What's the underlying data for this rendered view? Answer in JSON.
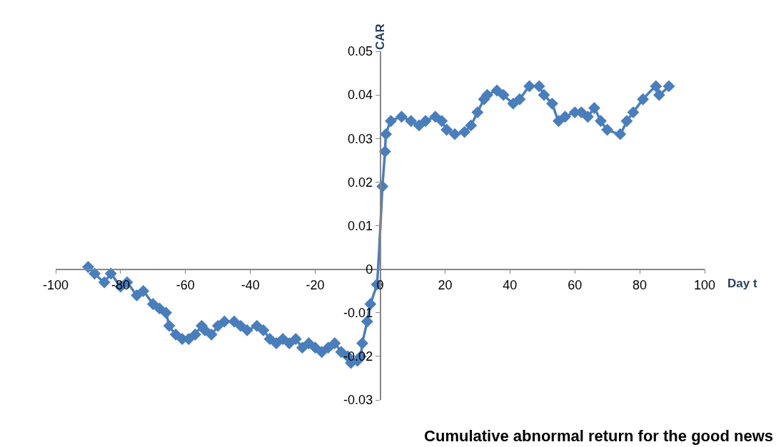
{
  "chart_data": {
    "type": "line",
    "title": "Cumulative abnormal return for the good news",
    "xlabel": "Day t",
    "ylabel": "CAR",
    "x": [
      -90,
      -88,
      -85,
      -83,
      -80,
      -78,
      -75,
      -73,
      -70,
      -68,
      -66,
      -65,
      -63,
      -61,
      -59,
      -57,
      -55,
      -54,
      -52,
      -50,
      -48,
      -45,
      -43,
      -41,
      -38,
      -36,
      -34,
      -32,
      -30,
      -28,
      -26,
      -24,
      -22,
      -20,
      -18,
      -16,
      -14,
      -12,
      -10,
      -9,
      -7,
      -6,
      -5.5,
      -4,
      -3,
      -1,
      0.7,
      1.5,
      1.8,
      3.3,
      6.6,
      9.5,
      12,
      14,
      17,
      19,
      20.5,
      23,
      26,
      28,
      30,
      32,
      33,
      36,
      38,
      41,
      43,
      46,
      49,
      50.5,
      53,
      55,
      57,
      60,
      62,
      64,
      66,
      68,
      70,
      74,
      76,
      78,
      81,
      85,
      86,
      89
    ],
    "series": [
      {
        "color": "#4a7ebb",
        "values": [
          0.0005,
          -0.001,
          -0.003,
          -0.001,
          -0.004,
          -0.003,
          -0.006,
          -0.005,
          -0.008,
          -0.009,
          -0.01,
          -0.013,
          -0.015,
          -0.016,
          -0.016,
          -0.015,
          -0.013,
          -0.014,
          -0.015,
          -0.013,
          -0.012,
          -0.012,
          -0.013,
          -0.014,
          -0.013,
          -0.014,
          -0.016,
          -0.017,
          -0.016,
          -0.017,
          -0.016,
          -0.018,
          -0.017,
          -0.018,
          -0.019,
          -0.018,
          -0.017,
          -0.019,
          -0.02,
          -0.0215,
          -0.021,
          -0.02,
          -0.017,
          -0.012,
          -0.008,
          -0.0035,
          0.019,
          0.027,
          0.031,
          0.034,
          0.035,
          0.034,
          0.033,
          0.034,
          0.035,
          0.034,
          0.032,
          0.031,
          0.0315,
          0.033,
          0.036,
          0.039,
          0.04,
          0.041,
          0.04,
          0.038,
          0.039,
          0.042,
          0.042,
          0.04,
          0.038,
          0.034,
          0.035,
          0.036,
          0.036,
          0.035,
          0.037,
          0.034,
          0.032,
          0.031,
          0.034,
          0.036,
          0.039,
          0.042,
          0.04,
          0.042
        ]
      }
    ],
    "xlim": [
      -100,
      100
    ],
    "xticks": [
      -100,
      -80,
      -60,
      -40,
      -20,
      0,
      20,
      40,
      60,
      80,
      100
    ],
    "ylim": [
      -0.03,
      0.05
    ],
    "yticks": [
      {
        "value": -0.03,
        "label": "-0.03"
      },
      {
        "value": -0.02,
        "label": "-0.02"
      },
      {
        "value": -0.01,
        "label": "-0.01"
      },
      {
        "value": 0,
        "label": "0"
      },
      {
        "value": 0.01,
        "label": "0.01"
      },
      {
        "value": 0.02,
        "label": "0.02"
      },
      {
        "value": 0.03,
        "label": "0.03"
      },
      {
        "value": 0.04,
        "label": "0.04"
      },
      {
        "value": 0.05,
        "label": "0.05"
      }
    ],
    "marker": "diamond",
    "line_style": "solid",
    "legend": false
  }
}
